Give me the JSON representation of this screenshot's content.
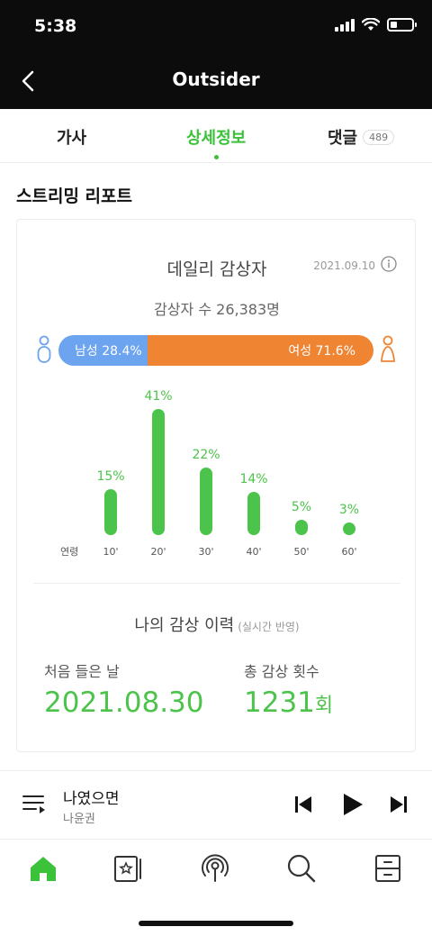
{
  "status_bar": {
    "time": "5:38"
  },
  "header": {
    "title": "Outsider"
  },
  "tabs": [
    {
      "label": "가사"
    },
    {
      "label": "상세정보"
    },
    {
      "label": "댓글",
      "badge": "489"
    }
  ],
  "report": {
    "section_title": "스트리밍 리포트",
    "daily": {
      "title": "데일리 감상자",
      "date": "2021.09.10",
      "listeners_text": "감상자 수 26,383명"
    },
    "gender": {
      "male_label": "남성 28.4%",
      "female_label": "여성 71.6%",
      "male_share": 28.4
    },
    "age": {
      "axis_label": "연령",
      "groups": [
        {
          "label": "10'",
          "percent": 15,
          "percent_text": "15%"
        },
        {
          "label": "20'",
          "percent": 41,
          "percent_text": "41%"
        },
        {
          "label": "30'",
          "percent": 22,
          "percent_text": "22%"
        },
        {
          "label": "40'",
          "percent": 14,
          "percent_text": "14%"
        },
        {
          "label": "50'",
          "percent": 5,
          "percent_text": "5%"
        },
        {
          "label": "60'",
          "percent": 3,
          "percent_text": "3%"
        }
      ]
    },
    "history": {
      "title": "나의 감상 이력",
      "subtitle": "(실시간 반영)",
      "first_listen_label": "처음 들은 날",
      "first_listen_value": "2021.08.30",
      "total_plays_label": "총 감상 횟수",
      "total_plays_value": "1231",
      "total_plays_unit": "회"
    }
  },
  "player": {
    "song": "나였으면",
    "artist": "나윤권"
  },
  "colors": {
    "accent": "#3cc13b",
    "male": "#6ca4ef",
    "female": "#ef8433"
  }
}
